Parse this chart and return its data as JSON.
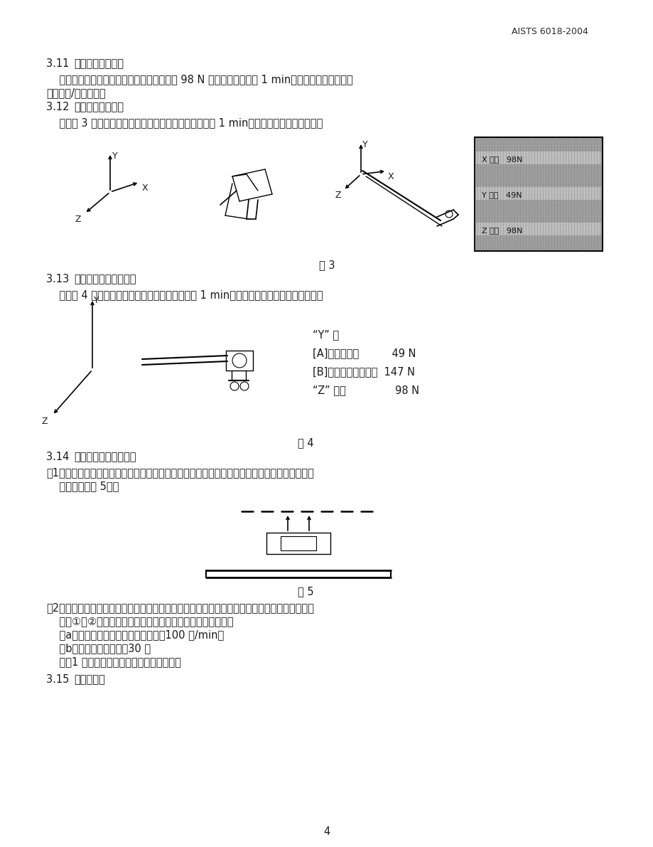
{
  "header_right": "AISTS 6018-2004",
  "page_number": "4",
  "bg": "#ffffff",
  "s311_num": "3.11 ",
  "s311_title": "勾连部位強度测试",
  "s311_body1": "    在操作方向上，向控制拉索的勾连部分施加 98 N 的静态载荷，保持 1 min，然后判断各部位是否",
  "s311_body2": "有变形和/或者断裂。",
  "s312_num": "3.12 ",
  "s312_title": "拉索卡箍強度测试",
  "s312_body": "    按照图 3 所示的方向，向控制拉索施加静态载荷并保持 1 min，判断外壳是否出现位移。",
  "fig3_caption": "图 3",
  "s313_num": "3.13 ",
  "s313_title": "丝杆卡子定位強度测试",
  "s313_body": "    按照图 4 所示的方向，分别施加静态载荷并保持 1 min，判断丝杆和丝杆卡子是否脱出。",
  "fig4_t1": "“Y” 向",
  "fig4_t2": "[A]：丝杆脱出          49 N",
  "fig4_t3": "[B]：丝杆卡子脱出为  147 N",
  "fig4_t4": "“Z” 向：               98 N",
  "fig4_caption": "图 4",
  "s314_num": "3.14 ",
  "s314_title": "控制拉索定位強度测试",
  "s314_1a": "（1）将控制拉索勾挂在相应的部位，向最靠近勾挂部位的拉索施加一载荷，测量使其脱出的作用",
  "s314_1b": "    力大小（见图 5）。",
  "fig5_caption": "图 5",
  "s314_2a": "（2）安装上用于测试的暖风机控制器，模拟车辆状况，将条件设置为工作状态。然后，在下面的",
  "s314_2b": "    条件①和②下，进行操作，并判断拉索是否会从连接处脱出。",
  "s314_a": "    （a）暖风机控制头连杆的操作速度：100 次/min。",
  "s314_b": "    （b）操作连杆的次数：30 次",
  "s314_note": "    注：1 次，是指往返的方式（往复行程）。",
  "s315_num": "3.15 ",
  "s315_title": "耗低温试验"
}
